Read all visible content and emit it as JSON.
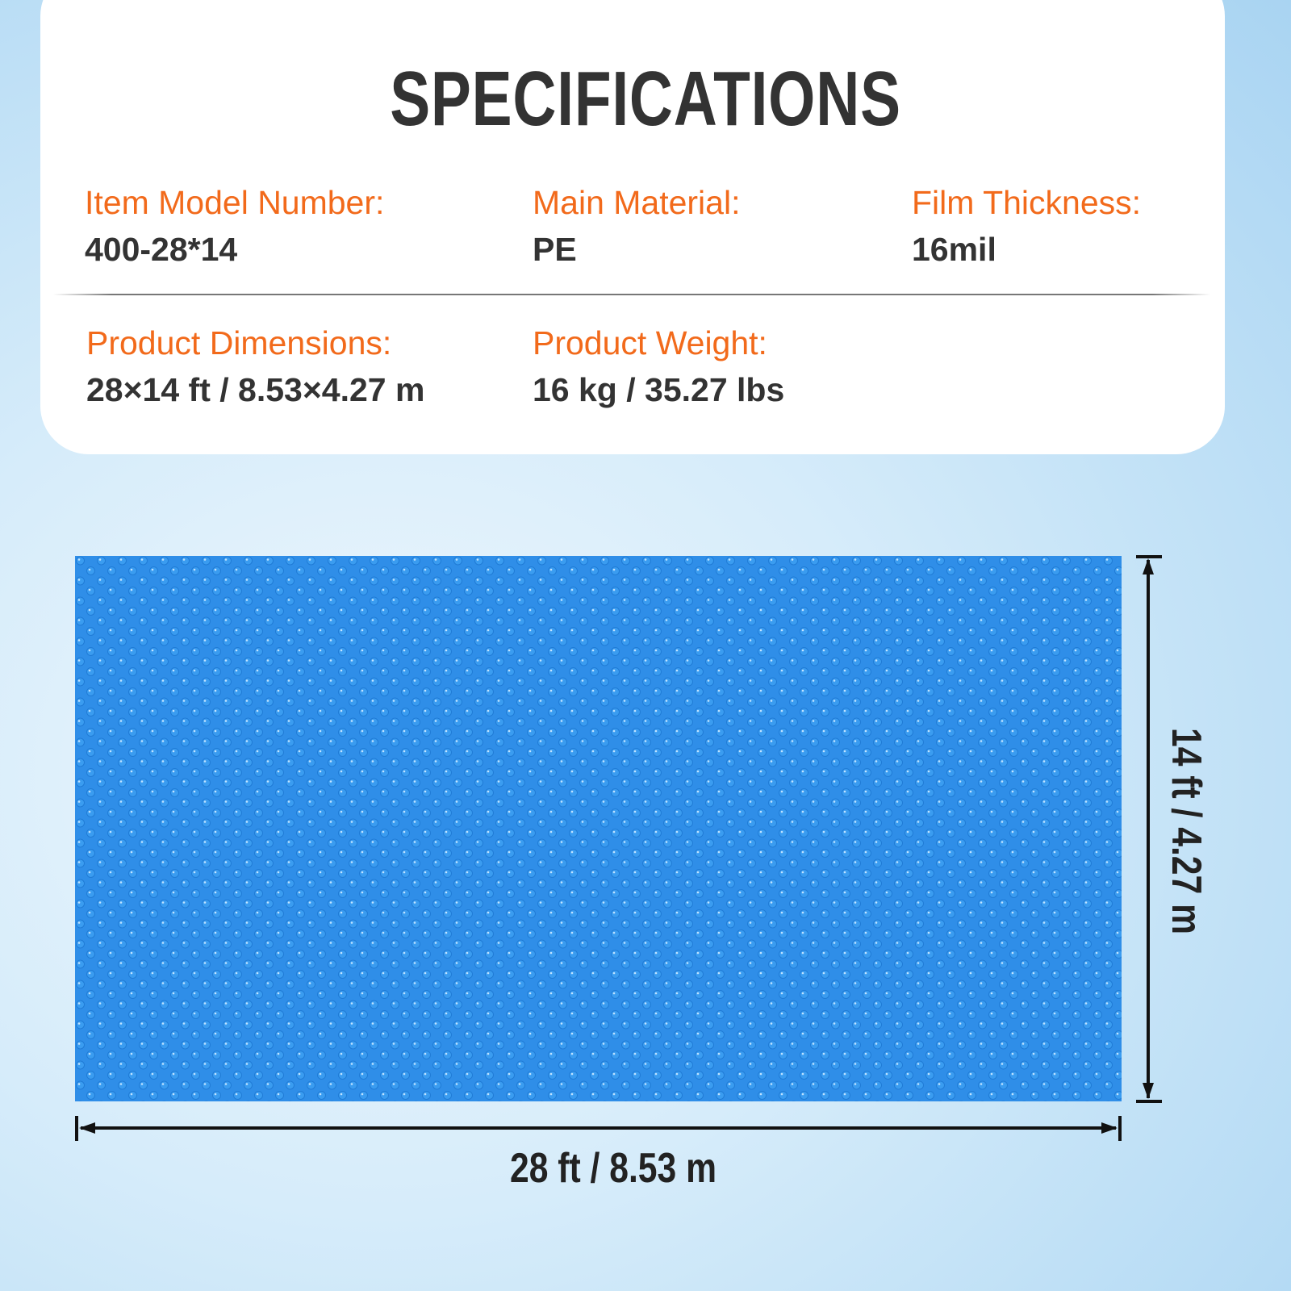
{
  "title": "SPECIFICATIONS",
  "specs": {
    "model": {
      "label": "Item Model Number:",
      "value": "400-28*14"
    },
    "material": {
      "label": "Main Material:",
      "value": "PE"
    },
    "thickness": {
      "label": "Film Thickness:",
      "value": "16mil"
    },
    "dimensions": {
      "label": "Product Dimensions:",
      "value": "28×14 ft / 8.53×4.27 m"
    },
    "weight": {
      "label": "Product Weight:",
      "value": "16 kg / 35.27 lbs"
    }
  },
  "diagram": {
    "width_label": "28 ft / 8.53 m",
    "height_label": "14 ft / 4.27 m"
  },
  "colors": {
    "label": "#f26a1b",
    "value": "#333333",
    "cover": "#2f8ee8"
  }
}
